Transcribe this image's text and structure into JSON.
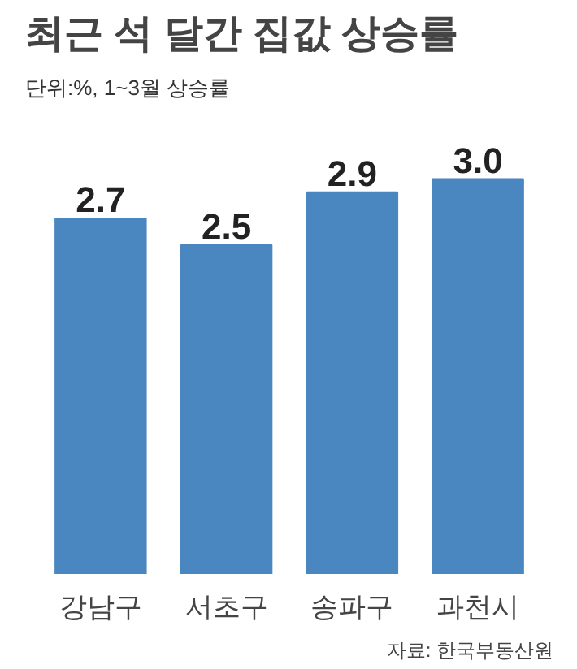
{
  "chart_data": {
    "type": "bar",
    "title": "최근 석 달간 집값 상승률",
    "subtitle": "단위:%, 1~3월 상승률",
    "categories": [
      "강남구",
      "서초구",
      "송파구",
      "과천시"
    ],
    "values": [
      2.7,
      2.5,
      2.9,
      3.0
    ],
    "value_labels": [
      "2.7",
      "2.5",
      "2.9",
      "3.0"
    ],
    "color": "#4a86c0",
    "grid": false,
    "annotations": [
      "자료: 한국부동산원"
    ]
  }
}
